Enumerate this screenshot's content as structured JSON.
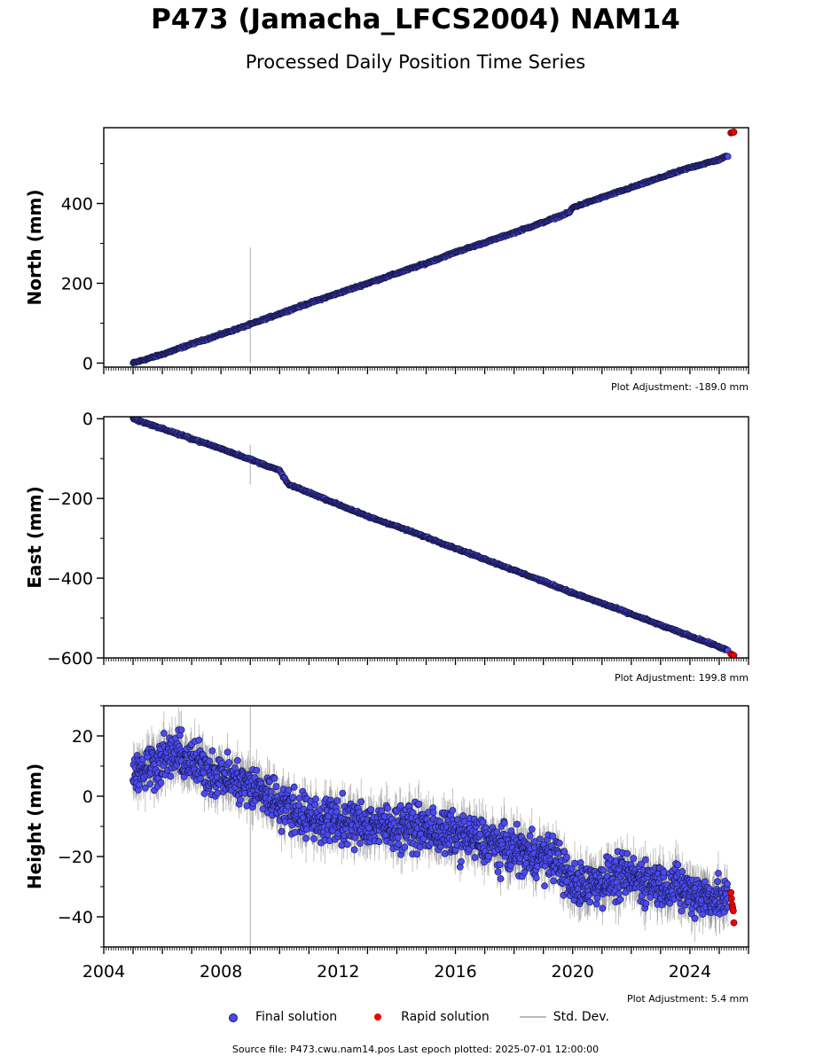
{
  "header": {
    "title": "P473 (Jamacha_LFCS2004) NAM14",
    "subtitle": "Processed Daily Position Time Series"
  },
  "legend": {
    "final_label": "Final solution",
    "rapid_label": "Rapid solution",
    "std_label": "Std. Dev."
  },
  "footer": {
    "source": "Source file: P473.cwu.nam14.pos  Last epoch plotted: 2025-07-01 12:00:00"
  },
  "colors": {
    "final": "#4a4af0",
    "rapid": "#ee0000",
    "stddev": "#bbbbbb"
  },
  "chart_data": [
    {
      "type": "scatter",
      "ylabel": "North (mm)",
      "adjustment": "Plot Adjustment: -189.0 mm",
      "xlim": [
        2004,
        2026
      ],
      "ylim": [
        -10,
        590
      ],
      "yticks": [
        0,
        200,
        400
      ],
      "series": [
        {
          "name": "Final solution",
          "x": [
            2005.0,
            2006.0,
            2007.0,
            2008.0,
            2009.0,
            2010.0,
            2011.0,
            2012.0,
            2013.0,
            2014.0,
            2015.0,
            2016.0,
            2017.0,
            2018.0,
            2019.0,
            2019.9,
            2020.0,
            2021.0,
            2022.0,
            2023.0,
            2024.0,
            2025.0,
            2025.3
          ],
          "y": [
            0,
            22,
            48,
            72,
            97,
            124,
            150,
            175,
            200,
            225,
            250,
            278,
            302,
            327,
            353,
            378,
            390,
            415,
            440,
            465,
            490,
            510,
            520
          ]
        },
        {
          "name": "Rapid solution",
          "x": [
            2025.4,
            2025.45,
            2025.5
          ],
          "y": [
            577,
            578,
            579
          ]
        }
      ],
      "outlier": {
        "x": 2009.0,
        "y": 120,
        "low": 0,
        "high": 290
      }
    },
    {
      "type": "scatter",
      "ylabel": "East (mm)",
      "adjustment": "Plot Adjustment: 199.8 mm",
      "xlim": [
        2004,
        2026
      ],
      "ylim": [
        -600,
        5
      ],
      "yticks": [
        0,
        -200,
        -400,
        -600
      ],
      "series": [
        {
          "name": "Final solution",
          "x": [
            2005.0,
            2006.0,
            2007.0,
            2008.0,
            2009.0,
            2010.0,
            2010.3,
            2011.0,
            2012.0,
            2013.0,
            2014.0,
            2015.0,
            2016.0,
            2017.0,
            2018.0,
            2019.0,
            2020.0,
            2021.0,
            2022.0,
            2023.0,
            2024.0,
            2025.0,
            2025.3
          ],
          "y": [
            0,
            -25,
            -50,
            -75,
            -102,
            -130,
            -165,
            -185,
            -215,
            -245,
            -270,
            -297,
            -325,
            -352,
            -380,
            -408,
            -437,
            -463,
            -490,
            -518,
            -545,
            -572,
            -582
          ]
        },
        {
          "name": "Rapid solution",
          "x": [
            2025.4,
            2025.45,
            2025.5
          ],
          "y": [
            -590,
            -592,
            -594
          ]
        }
      ],
      "outlier": {
        "x": 2009.0,
        "y": -112,
        "low": -165,
        "high": -65
      }
    },
    {
      "type": "scatter",
      "ylabel": "Height (mm)",
      "adjustment": "Plot Adjustment: 5.4 mm",
      "xlim": [
        2004,
        2026
      ],
      "xticks": [
        2004,
        2008,
        2012,
        2016,
        2020,
        2024
      ],
      "ylim": [
        -50,
        30
      ],
      "yticks": [
        20,
        0,
        -20,
        -40
      ],
      "series": [
        {
          "name": "Final solution",
          "x": [
            2005.0,
            2005.5,
            2006.0,
            2006.5,
            2007.0,
            2007.5,
            2008.0,
            2008.5,
            2009.0,
            2009.5,
            2010.0,
            2010.5,
            2011.0,
            2011.5,
            2012.0,
            2012.5,
            2013.0,
            2013.5,
            2014.0,
            2014.5,
            2015.0,
            2015.5,
            2016.0,
            2016.5,
            2017.0,
            2017.5,
            2018.0,
            2018.5,
            2019.0,
            2019.5,
            2020.0,
            2020.5,
            2021.0,
            2021.5,
            2022.0,
            2022.5,
            2023.0,
            2023.5,
            2024.0,
            2024.5,
            2025.0,
            2025.3
          ],
          "y": [
            8,
            10,
            12,
            14,
            11,
            9,
            7,
            5,
            3,
            1,
            -2,
            -5,
            -7,
            -8,
            -8,
            -9,
            -9,
            -10,
            -10,
            -10,
            -11,
            -12,
            -13,
            -14,
            -15,
            -17,
            -18,
            -19,
            -20,
            -21,
            -30,
            -29,
            -28,
            -27,
            -27,
            -28,
            -29,
            -30,
            -32,
            -33,
            -34,
            -35
          ]
        },
        {
          "name": "Rapid solution",
          "x": [
            2025.4,
            2025.42,
            2025.44,
            2025.46,
            2025.48,
            2025.5
          ],
          "y": [
            -32,
            -34,
            -36,
            -37,
            -38,
            -42
          ]
        }
      ],
      "outlier": {
        "x": 2009.0,
        "y": 0,
        "low": -50,
        "high": 30
      }
    }
  ]
}
